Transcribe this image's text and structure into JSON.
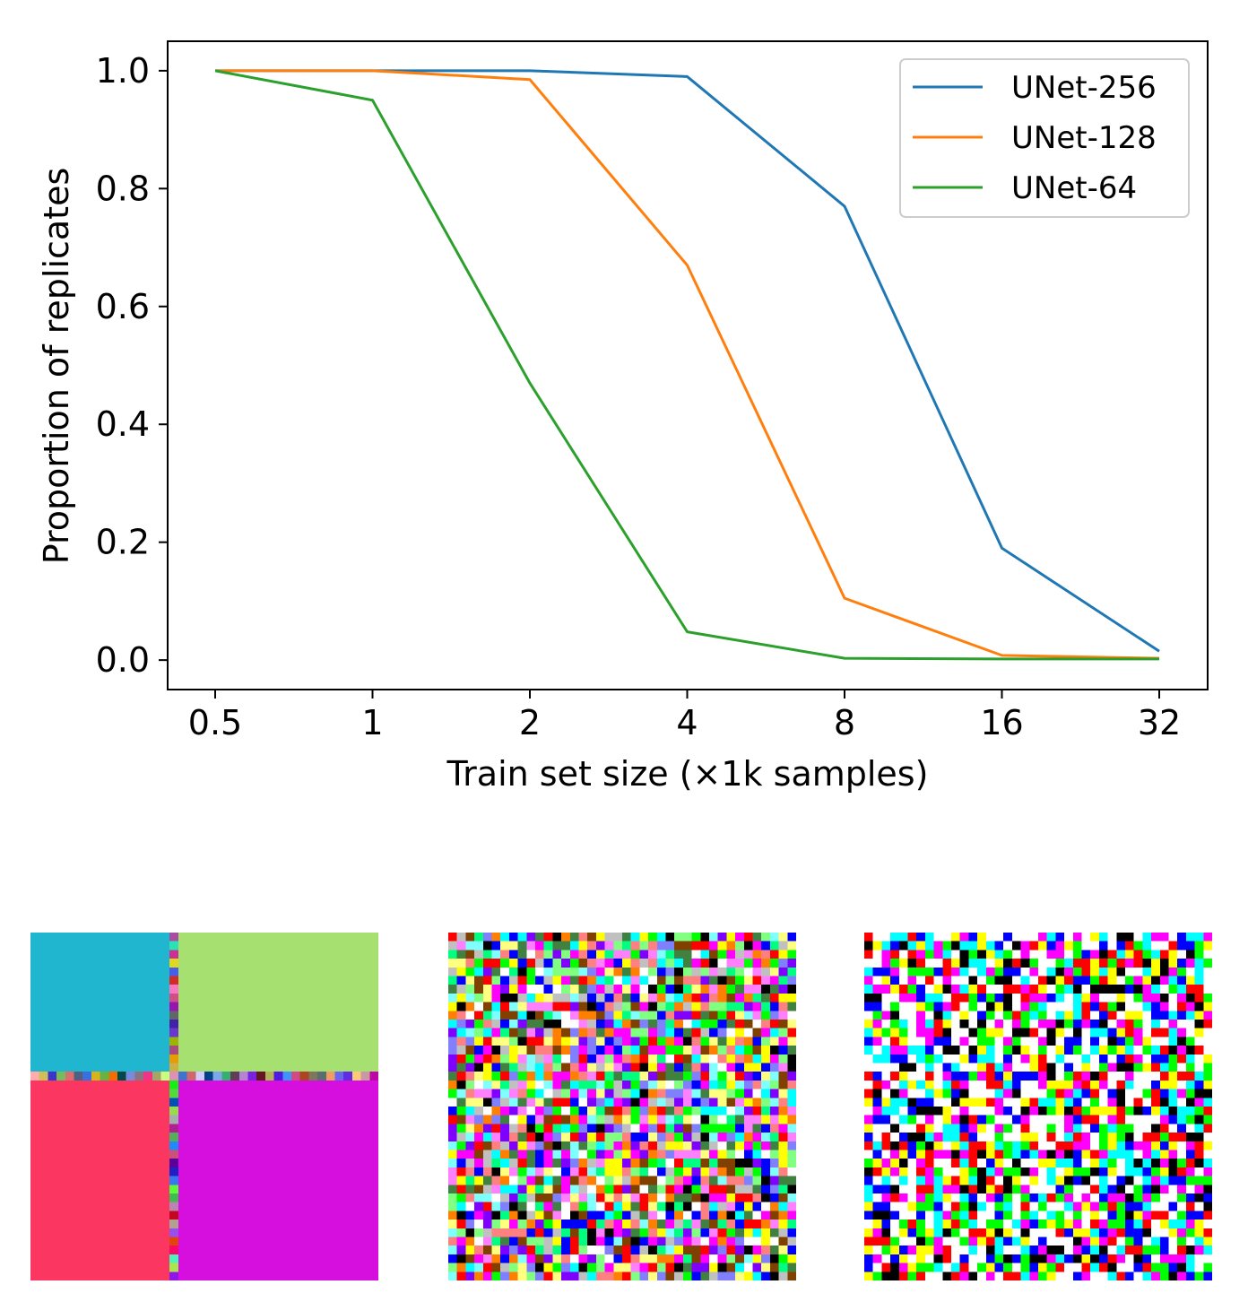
{
  "chart_data": {
    "type": "line",
    "x": [
      "0.5",
      "1",
      "2",
      "4",
      "8",
      "16",
      "32"
    ],
    "xlabel": "Train set size (×1k samples)",
    "ylabel": "Proportion of replicates",
    "ylim": [
      -0.05,
      1.05
    ],
    "yticks": [
      "0.0",
      "0.2",
      "0.4",
      "0.6",
      "0.8",
      "1.0"
    ],
    "legend_position": "top-right",
    "grid": false,
    "series": [
      {
        "name": "UNet-256",
        "color": "#1f77b4",
        "values": [
          1.0,
          1.0,
          1.0,
          0.99,
          0.77,
          0.19,
          0.015
        ]
      },
      {
        "name": "UNet-128",
        "color": "#ff7f0e",
        "values": [
          1.0,
          1.0,
          0.985,
          0.67,
          0.105,
          0.008,
          0.003
        ]
      },
      {
        "name": "UNet-64",
        "color": "#2ca02c",
        "values": [
          1.0,
          0.95,
          0.47,
          0.048,
          0.003,
          0.002,
          0.002
        ]
      }
    ]
  },
  "samples": [
    {
      "kind": "quadrants",
      "colors": [
        "#21b6d0",
        "#a6e070",
        "#fb3660",
        "#d60fdf"
      ]
    },
    {
      "kind": "noise-soft",
      "grid": 40
    },
    {
      "kind": "noise-saturated",
      "grid": 40
    }
  ]
}
